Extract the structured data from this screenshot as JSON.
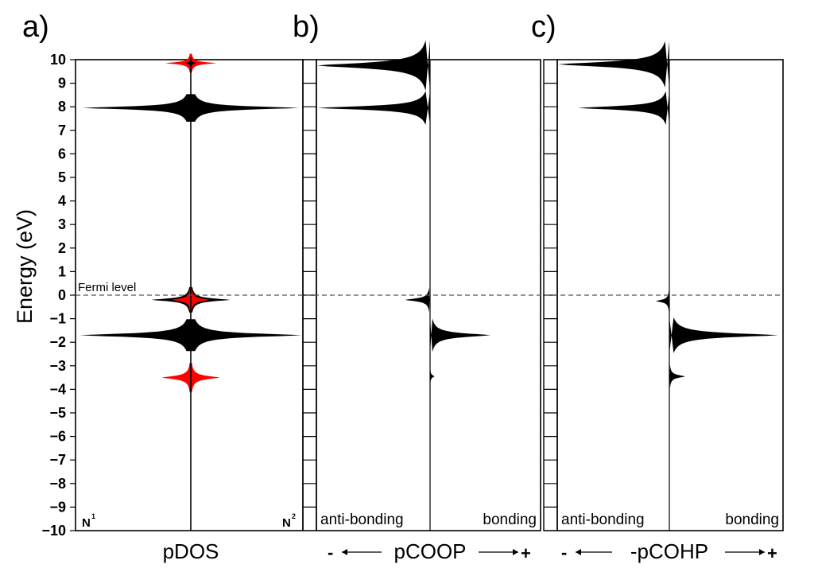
{
  "chart_data": {
    "type": "area",
    "ylabel": "Energy (eV)",
    "ylim": [
      -10,
      10
    ],
    "yticks": [
      10,
      9,
      8,
      7,
      6,
      5,
      4,
      3,
      2,
      1,
      0,
      -1,
      -2,
      -3,
      -4,
      -5,
      -6,
      -7,
      -8,
      -9,
      -10
    ],
    "fermi_level": {
      "energy": 0,
      "label": "Fermi level"
    },
    "colors": {
      "black_series": "#000000",
      "red_series": "#ff0000",
      "fermi_line": "#555555"
    },
    "panels": [
      {
        "id": "a",
        "letter": "a)",
        "xlabel": "pDOS",
        "left_corner_label": "N",
        "left_corner_sup": "1",
        "right_corner_label": "N",
        "right_corner_sup": "2",
        "peaks": [
          {
            "energy": 9.85,
            "amplitude": 0.22,
            "width": 0.09,
            "color": "red"
          },
          {
            "energy": 9.85,
            "amplitude": 0.05,
            "width": 0.06,
            "color": "black"
          },
          {
            "energy": 7.95,
            "amplitude": 0.94,
            "width": 0.13,
            "color": "black"
          },
          {
            "energy": -0.2,
            "amplitude": 0.34,
            "width": 0.12,
            "color": "black"
          },
          {
            "energy": -0.2,
            "amplitude": 0.16,
            "width": 0.12,
            "color": "red"
          },
          {
            "energy": -1.7,
            "amplitude": 0.96,
            "width": 0.15,
            "color": "black"
          },
          {
            "energy": -3.5,
            "amplitude": 0.25,
            "width": 0.14,
            "color": "red"
          }
        ]
      },
      {
        "id": "b",
        "letter": "b)",
        "xlabel": "pCOOP",
        "minus_symbol": "-",
        "plus_symbol": "+",
        "anti_bonding_label": "anti-bonding",
        "bonding_label": "bonding",
        "peaks": [
          {
            "energy": 9.75,
            "amplitude": -1.0,
            "width": 0.24
          },
          {
            "energy": 7.95,
            "amplitude": -1.0,
            "width": 0.16
          },
          {
            "energy": -0.2,
            "amplitude": -0.22,
            "width": 0.12
          },
          {
            "energy": -1.7,
            "amplitude": 0.55,
            "width": 0.16
          },
          {
            "energy": -3.45,
            "amplitude": 0.04,
            "width": 0.1
          }
        ]
      },
      {
        "id": "c",
        "letter": "c)",
        "xlabel": "-pCOHP",
        "minus_symbol": "-",
        "plus_symbol": "+",
        "anti_bonding_label": "anti-bonding",
        "bonding_label": "bonding",
        "peaks": [
          {
            "energy": 9.8,
            "amplitude": -1.0,
            "width": 0.22
          },
          {
            "energy": 7.95,
            "amplitude": -0.82,
            "width": 0.16
          },
          {
            "energy": -0.25,
            "amplitude": -0.12,
            "width": 0.11
          },
          {
            "energy": -1.7,
            "amplitude": 0.97,
            "width": 0.17
          },
          {
            "energy": -3.45,
            "amplitude": 0.14,
            "width": 0.12
          }
        ]
      }
    ]
  }
}
